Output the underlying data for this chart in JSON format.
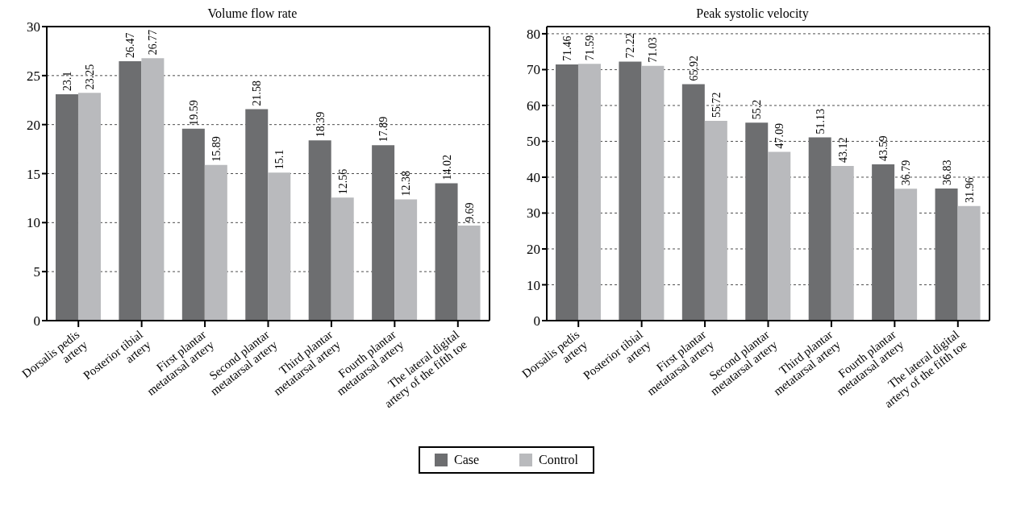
{
  "chart_data": [
    {
      "type": "bar",
      "title": "Volume flow rate",
      "categories": [
        "Dorsalis pedis\nartery",
        "Posterior tibial\nartery",
        "First plantar\nmetatarsal artery",
        "Second plantar\nmetatarsal artery",
        "Third plantar\nmetatarsal artery",
        "Fourth plantar\nmetatarsal artery",
        "The lateral digital\nartery of the fifth toe"
      ],
      "series": [
        {
          "name": "Case",
          "color": "#6d6e70",
          "values": [
            23.1,
            26.47,
            19.59,
            21.58,
            18.39,
            17.89,
            14.02
          ]
        },
        {
          "name": "Control",
          "color": "#b9babd",
          "values": [
            23.25,
            26.77,
            15.89,
            15.1,
            12.56,
            12.38,
            9.69
          ]
        }
      ],
      "ylim": [
        0,
        30
      ],
      "yticks": [
        0,
        5,
        10,
        15,
        20,
        25,
        30
      ],
      "grid": "y",
      "data_labels": true,
      "legend": "bottom"
    },
    {
      "type": "bar",
      "title": "Peak systolic velocity",
      "categories": [
        "Dorsalis pedis\nartery",
        "Posterior tibial\nartery",
        "First plantar\nmetatarsal artery",
        "Second plantar\nmetatarsal artery",
        "Third plantar\nmetatarsal artery",
        "Fourth plantar\nmetatarsal artery",
        "The lateral digital\nartery of the fifth toe"
      ],
      "series": [
        {
          "color": "#6d6e70",
          "values": [
            71.46,
            72.22,
            65.92,
            55.2,
            51.13,
            43.59,
            36.83
          ]
        },
        {
          "color": "#b9babd",
          "values": [
            71.59,
            71.03,
            55.72,
            47.09,
            43.12,
            36.79,
            31.96
          ]
        }
      ],
      "ylim": [
        0,
        82
      ],
      "yticks": [
        0,
        10,
        20,
        30,
        40,
        50,
        60,
        70,
        80
      ],
      "grid": "y",
      "data_labels": true
    }
  ]
}
